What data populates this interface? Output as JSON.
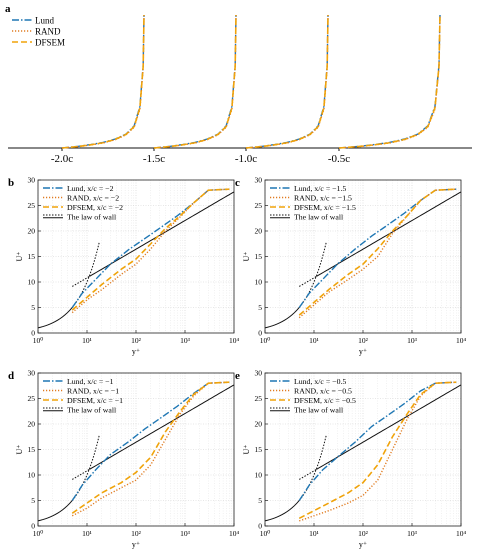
{
  "styles": {
    "Lund": {
      "color": "#1f77b4",
      "dash": "7,2,1.5,2",
      "width": 1.4
    },
    "RAND": {
      "color": "#e07b20",
      "dash": "1.2,1.8",
      "width": 1.4
    },
    "DFSEM": {
      "color": "#f0a30a",
      "dash": "6,3",
      "width": 1.6
    },
    "wall": {
      "color": "#111111",
      "dash": "",
      "width": 1.0
    },
    "wall_dot": {
      "color": "#111111",
      "dash": "1.5,1.5",
      "width": 1.0
    }
  },
  "chart_data": [
    {
      "panel": "a",
      "type": "line",
      "x_ticks": [
        "-2.0c",
        "-1.5c",
        "-1.0c",
        "-0.5c"
      ],
      "legend": [
        "Lund",
        "RAND",
        "DFSEM"
      ],
      "legend_position": "top-left",
      "stations": [
        -2,
        -1.5,
        -1,
        -0.5
      ],
      "series": [
        {
          "name": "Lund",
          "profile": [
            [
              0,
              0
            ],
            [
              0.2,
              1.2
            ],
            [
              0.35,
              2.5
            ],
            [
              0.5,
              4
            ],
            [
              0.65,
              6.5
            ],
            [
              0.78,
              10
            ],
            [
              0.88,
              16
            ],
            [
              0.95,
              30
            ],
            [
              0.99,
              60
            ],
            [
              1,
              96
            ]
          ]
        },
        {
          "name": "RAND",
          "profile": [
            [
              0,
              0
            ],
            [
              0.2,
              1.0
            ],
            [
              0.35,
              2.2
            ],
            [
              0.5,
              3.6
            ],
            [
              0.65,
              6
            ],
            [
              0.78,
              9.5
            ],
            [
              0.88,
              15
            ],
            [
              0.95,
              28
            ],
            [
              0.99,
              58
            ],
            [
              1,
              96
            ]
          ]
        },
        {
          "name": "DFSEM",
          "profile": [
            [
              0,
              0
            ],
            [
              0.2,
              1.1
            ],
            [
              0.35,
              2.3
            ],
            [
              0.5,
              3.8
            ],
            [
              0.65,
              6.2
            ],
            [
              0.78,
              9.8
            ],
            [
              0.88,
              15.5
            ],
            [
              0.95,
              29
            ],
            [
              0.99,
              59
            ],
            [
              1,
              96
            ]
          ]
        }
      ]
    },
    {
      "panel": "b",
      "type": "line",
      "x_scale": "log",
      "xlim": [
        1,
        10000
      ],
      "ylim": [
        0,
        30
      ],
      "xlabel": "y⁺",
      "ylabel": "U⁺",
      "x_ticks": [
        1,
        10,
        100,
        1000,
        10000
      ],
      "x_tick_labels": [
        "10⁰",
        "10¹",
        "10²",
        "10³",
        "10⁴"
      ],
      "y_ticks": [
        0,
        5,
        10,
        15,
        20,
        25,
        30
      ],
      "legend": [
        "Lund, x/c = −2",
        "RAND, x/c = −2",
        "DFSEM, x/c = −2",
        "The law of wall"
      ],
      "legend_position": "top-left",
      "series": [
        {
          "name": "Lund",
          "points": [
            [
              5,
              5
            ],
            [
              8,
              7.8
            ],
            [
              15,
              10.5
            ],
            [
              30,
              13.5
            ],
            [
              70,
              16.3
            ],
            [
              150,
              18.5
            ],
            [
              300,
              20.5
            ],
            [
              700,
              23
            ],
            [
              1500,
              25.5
            ],
            [
              3000,
              28
            ],
            [
              8000,
              28.2
            ]
          ]
        },
        {
          "name": "RAND",
          "points": [
            [
              5,
              4
            ],
            [
              10,
              6.5
            ],
            [
              20,
              8.5
            ],
            [
              50,
              11.5
            ],
            [
              100,
              13.5
            ],
            [
              200,
              16.5
            ],
            [
              400,
              20
            ],
            [
              800,
              22.8
            ],
            [
              1500,
              25.5
            ],
            [
              3000,
              28
            ],
            [
              8000,
              28.2
            ]
          ]
        },
        {
          "name": "DFSEM",
          "points": [
            [
              5,
              4.5
            ],
            [
              10,
              7
            ],
            [
              20,
              9.5
            ],
            [
              50,
              12.5
            ],
            [
              100,
              14.5
            ],
            [
              200,
              17.5
            ],
            [
              400,
              20.5
            ],
            [
              800,
              23
            ],
            [
              1500,
              25.5
            ],
            [
              3000,
              28
            ],
            [
              8000,
              28.2
            ]
          ]
        }
      ]
    },
    {
      "panel": "c",
      "type": "line",
      "x_scale": "log",
      "xlim": [
        1,
        10000
      ],
      "ylim": [
        0,
        30
      ],
      "xlabel": "y⁺",
      "ylabel": "U⁺",
      "x_ticks": [
        1,
        10,
        100,
        1000,
        10000
      ],
      "x_tick_labels": [
        "10⁰",
        "10¹",
        "10²",
        "10³",
        "10⁴"
      ],
      "y_ticks": [
        0,
        5,
        10,
        15,
        20,
        25,
        30
      ],
      "legend": [
        "Lund, x/c = −1.5",
        "RAND, x/c = −1.5",
        "DFSEM, x/c = −1.5",
        "The law of wall"
      ],
      "legend_position": "top-left",
      "series": [
        {
          "name": "Lund",
          "points": [
            [
              5,
              5
            ],
            [
              8,
              7.8
            ],
            [
              15,
              10.5
            ],
            [
              30,
              13.5
            ],
            [
              70,
              16.5
            ],
            [
              150,
              19
            ],
            [
              300,
              21
            ],
            [
              700,
              23.5
            ],
            [
              1500,
              26
            ],
            [
              3000,
              28
            ],
            [
              8000,
              28.2
            ]
          ]
        },
        {
          "name": "RAND",
          "points": [
            [
              5,
              3
            ],
            [
              10,
              5.5
            ],
            [
              20,
              8
            ],
            [
              50,
              10.5
            ],
            [
              100,
              12.5
            ],
            [
              200,
              15
            ],
            [
              400,
              19.5
            ],
            [
              800,
              23
            ],
            [
              1500,
              26
            ],
            [
              3000,
              28
            ],
            [
              8000,
              28.2
            ]
          ]
        },
        {
          "name": "DFSEM",
          "points": [
            [
              5,
              3.5
            ],
            [
              10,
              6
            ],
            [
              20,
              8.5
            ],
            [
              50,
              11.5
            ],
            [
              100,
              13.5
            ],
            [
              200,
              16.5
            ],
            [
              400,
              20
            ],
            [
              800,
              23
            ],
            [
              1500,
              26
            ],
            [
              3000,
              28
            ],
            [
              8000,
              28.2
            ]
          ]
        }
      ]
    },
    {
      "panel": "d",
      "type": "line",
      "x_scale": "log",
      "xlim": [
        1,
        10000
      ],
      "ylim": [
        0,
        30
      ],
      "xlabel": "y⁺",
      "ylabel": "U⁺",
      "x_ticks": [
        1,
        10,
        100,
        1000,
        10000
      ],
      "x_tick_labels": [
        "10⁰",
        "10¹",
        "10²",
        "10³",
        "10⁴"
      ],
      "y_ticks": [
        0,
        5,
        10,
        15,
        20,
        25,
        30
      ],
      "legend": [
        "Lund, x/c = −1",
        "RAND, x/c = −1",
        "DFSEM, x/c = −1",
        "The law of wall"
      ],
      "legend_position": "top-left",
      "series": [
        {
          "name": "Lund",
          "points": [
            [
              5,
              5
            ],
            [
              8,
              8
            ],
            [
              15,
              11
            ],
            [
              30,
              14
            ],
            [
              70,
              16.5
            ],
            [
              150,
              19
            ],
            [
              300,
              21
            ],
            [
              700,
              23.5
            ],
            [
              1500,
              26
            ],
            [
              3000,
              28
            ],
            [
              8000,
              28.2
            ]
          ]
        },
        {
          "name": "RAND",
          "points": [
            [
              5,
              2
            ],
            [
              10,
              3.5
            ],
            [
              20,
              5.5
            ],
            [
              50,
              7.5
            ],
            [
              100,
              9
            ],
            [
              200,
              12
            ],
            [
              400,
              17
            ],
            [
              800,
              22
            ],
            [
              1500,
              25.5
            ],
            [
              3000,
              28
            ],
            [
              8000,
              28.2
            ]
          ]
        },
        {
          "name": "DFSEM",
          "points": [
            [
              5,
              2.5
            ],
            [
              10,
              4.5
            ],
            [
              20,
              6.5
            ],
            [
              50,
              8.5
            ],
            [
              100,
              10.5
            ],
            [
              200,
              13.5
            ],
            [
              400,
              18.5
            ],
            [
              800,
              22.5
            ],
            [
              1500,
              25.8
            ],
            [
              3000,
              28
            ],
            [
              8000,
              28.2
            ]
          ]
        }
      ]
    },
    {
      "panel": "e",
      "type": "line",
      "x_scale": "log",
      "xlim": [
        1,
        10000
      ],
      "ylim": [
        0,
        30
      ],
      "xlabel": "y⁺",
      "ylabel": "U⁺",
      "x_ticks": [
        1,
        10,
        100,
        1000,
        10000
      ],
      "x_tick_labels": [
        "10⁰",
        "10¹",
        "10²",
        "10³",
        "10⁴"
      ],
      "y_ticks": [
        0,
        5,
        10,
        15,
        20,
        25,
        30
      ],
      "legend": [
        "Lund, x/c = −0.5",
        "RAND, x/c = −0.5",
        "DFSEM, x/c = −0.5",
        "The law of wall"
      ],
      "legend_position": "top-left",
      "series": [
        {
          "name": "Lund",
          "points": [
            [
              5,
              5
            ],
            [
              8,
              8
            ],
            [
              15,
              11
            ],
            [
              30,
              13.5
            ],
            [
              70,
              16.5
            ],
            [
              150,
              19.5
            ],
            [
              300,
              21.5
            ],
            [
              700,
              24
            ],
            [
              1500,
              26.5
            ],
            [
              3000,
              28
            ],
            [
              8000,
              28.2
            ]
          ]
        },
        {
          "name": "RAND",
          "points": [
            [
              5,
              1
            ],
            [
              10,
              2
            ],
            [
              20,
              3
            ],
            [
              50,
              4.5
            ],
            [
              100,
              6
            ],
            [
              200,
              9
            ],
            [
              400,
              15
            ],
            [
              800,
              21
            ],
            [
              1500,
              25.5
            ],
            [
              3000,
              28
            ],
            [
              8000,
              28.2
            ]
          ]
        },
        {
          "name": "DFSEM",
          "points": [
            [
              5,
              1.5
            ],
            [
              10,
              3
            ],
            [
              20,
              4.5
            ],
            [
              50,
              6.5
            ],
            [
              100,
              8.5
            ],
            [
              200,
              12
            ],
            [
              400,
              17.5
            ],
            [
              800,
              22
            ],
            [
              1500,
              25.8
            ],
            [
              3000,
              28
            ],
            [
              8000,
              28.2
            ]
          ]
        }
      ]
    }
  ]
}
